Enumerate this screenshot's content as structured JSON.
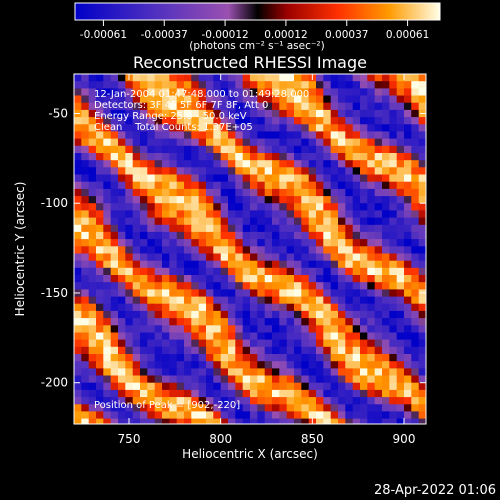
{
  "chart_data": {
    "type": "heatmap",
    "title": "Reconstructed RHESSI Image",
    "xlabel": "Heliocentric X (arcsec)",
    "ylabel": "Heliocentric Y (arcsec)",
    "xlim": [
      720,
      912
    ],
    "ylim": [
      -223,
      -28
    ],
    "x_ticks": [
      750,
      800,
      850,
      900
    ],
    "y_ticks": [
      -50,
      -100,
      -150,
      -200
    ],
    "colorbar": {
      "min": -0.00061,
      "max": 0.00061,
      "tick_labels": [
        "-0.00061",
        "-0.00037",
        "-0.00012",
        "0.00012",
        "0.00037",
        "0.00061"
      ],
      "units_label": "(photons cm⁻² s⁻¹ asec⁻²)"
    },
    "info_lines": [
      "12-Jan-2004 01:47:48.000 to 01:49:28.000",
      "Detectors: 3F 4F 5F 6F 7F 8F, Att 0",
      "Energy Range: 25.0 - 50.0 keV",
      "Clean    Total Counts: 1.37E+05"
    ],
    "peak_label": "Position of Peak = [902,-220]",
    "peak": [
      902,
      -220
    ],
    "pattern": {
      "description_of_field": "diagonal fringe stripes, alternating positive (yellow/orange) and negative (blue/purple)",
      "stripe_angle_deg": -40,
      "stripe_spacing_arcsec": 44
    }
  },
  "footer": {
    "timestamp": "28-Apr-2022 01:06"
  }
}
